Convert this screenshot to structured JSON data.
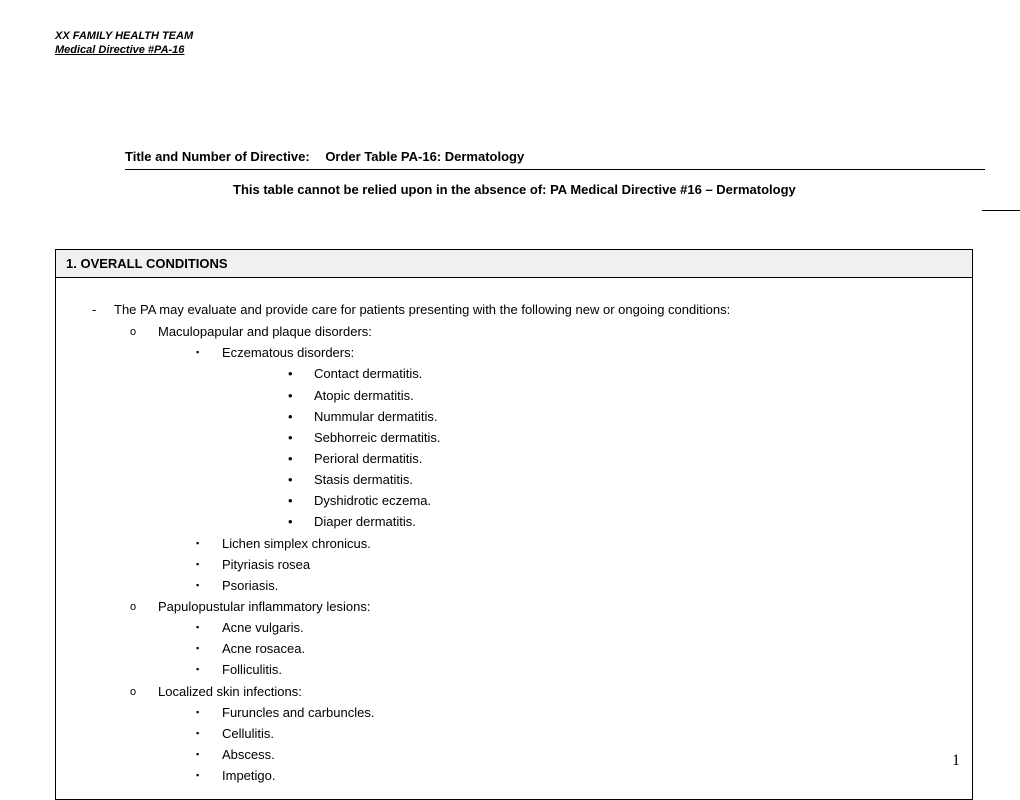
{
  "header": {
    "org": "XX FAMILY HEALTH TEAM",
    "directive_ref": "Medical Directive #PA-16"
  },
  "title": {
    "label": "Title and Number of Directive:",
    "value": "Order Table PA-16: Dermatology"
  },
  "subtitle": "This table cannot be relied upon in the absence of: PA Medical Directive #16 – Dermatology",
  "section": {
    "heading": "1.  OVERALL CONDITIONS",
    "intro": "The PA may evaluate and provide care for patients presenting with the following new or ongoing conditions:",
    "groups": [
      {
        "label": "Maculopapular and plaque disorders:",
        "subgroups": [
          {
            "label": "Eczematous disorders:",
            "items": [
              "Contact dermatitis.",
              "Atopic dermatitis.",
              "Nummular dermatitis.",
              "Sebhorreic dermatitis.",
              "Perioral dermatitis.",
              "Stasis dermatitis.",
              "Dyshidrotic eczema.",
              "Diaper dermatitis."
            ]
          },
          {
            "label": "Lichen simplex chronicus.",
            "items": []
          },
          {
            "label": "Pityriasis rosea",
            "items": []
          },
          {
            "label": "Psoriasis.",
            "items": []
          }
        ]
      },
      {
        "label": "Papulopustular inflammatory lesions:",
        "subgroups": [
          {
            "label": "Acne vulgaris.",
            "items": []
          },
          {
            "label": "Acne rosacea.",
            "items": []
          },
          {
            "label": "Folliculitis.",
            "items": []
          }
        ]
      },
      {
        "label": "Localized skin infections:",
        "subgroups": [
          {
            "label": "Furuncles and carbuncles.",
            "items": []
          },
          {
            "label": "Cellulitis.",
            "items": []
          },
          {
            "label": "Abscess.",
            "items": []
          },
          {
            "label": "Impetigo.",
            "items": []
          }
        ]
      }
    ]
  },
  "page_number": "1"
}
